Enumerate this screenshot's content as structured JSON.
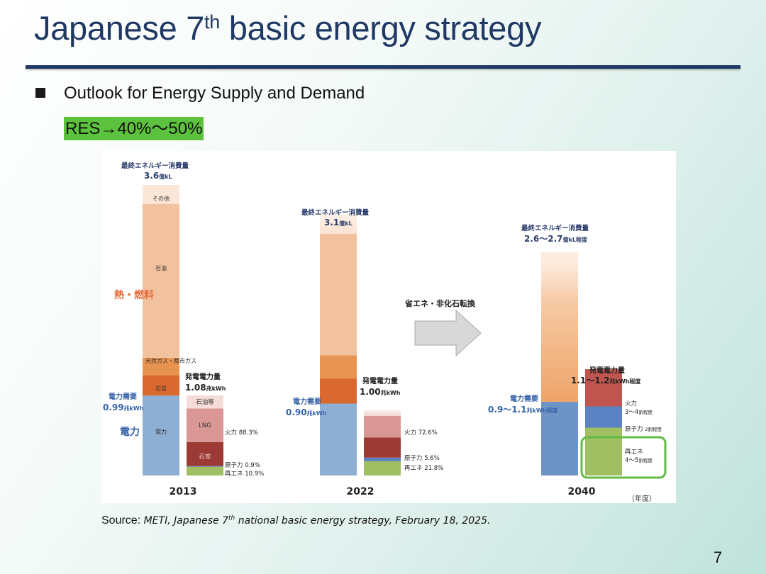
{
  "slide": {
    "title_pre": "Japanese 7",
    "title_sup": "th",
    "title_post": " basic energy strategy",
    "bullet": "Outlook for Energy Supply and Demand",
    "highlight": "RES→40%～50%",
    "source_label": "Source:",
    "source_text_pre": "METI, Japanese 7",
    "source_sup": "th",
    "source_text_post": " national basic energy strategy, February 18, 2025.",
    "page_number": "7",
    "accent_color": "#1f3864",
    "highlight_color": "#5cc13c"
  },
  "chart_data": {
    "type": "stacked-bar",
    "unit_note": "（年度）",
    "section_labels": {
      "heat_fuel": "熱・燃料",
      "electricity": "電力"
    },
    "arrow_label": "省エネ・非化石転換",
    "years": [
      {
        "year": "2013",
        "final_label": "最終エネルギー消費量",
        "final_value": "3.6",
        "final_unit": "億kL",
        "demand_label": "電力需要",
        "demand_value": "0.99",
        "demand_unit": "兆kWh",
        "consumption_segments": [
          {
            "name": "電力",
            "share": 0.275
          },
          {
            "name": "石炭",
            "share": 0.07
          },
          {
            "name": "天然ガス・都市ガス",
            "share": 0.06
          },
          {
            "name": "石油",
            "share": 0.53
          },
          {
            "name": "その他",
            "share": 0.065
          }
        ],
        "gen_label": "発電電力量",
        "gen_value": "1.08",
        "gen_unit": "兆kWh",
        "generation_segments": [
          {
            "name": "再エネ",
            "percent": 10.9
          },
          {
            "name": "原子力",
            "percent": 0.9
          },
          {
            "name": "石炭",
            "percent": 30
          },
          {
            "name": "LNG",
            "percent": 42
          },
          {
            "name": "石油等",
            "percent": 16.2
          }
        ],
        "gen_annotations": [
          {
            "name": "火力",
            "value": "88.3",
            "unit": "%"
          },
          {
            "name": "原子力",
            "value": "0.9",
            "unit": "%"
          },
          {
            "name": "再エネ",
            "value": "10.9",
            "unit": "%"
          }
        ]
      },
      {
        "year": "2022",
        "final_label": "最終エネルギー消費量",
        "final_value": "3.1",
        "final_unit": "億kL",
        "demand_label": "電力需要",
        "demand_value": "0.90",
        "demand_unit": "兆kWh",
        "consumption_segments": [
          {
            "name": "電力",
            "share": 0.29
          },
          {
            "name": "石炭",
            "share": 0.1
          },
          {
            "name": "天然ガス・都市ガス",
            "share": 0.095
          },
          {
            "name": "石油",
            "share": 0.49
          },
          {
            "name": "その他",
            "share": 0.08
          }
        ],
        "gen_label": "発電電力量",
        "gen_value": "1.00",
        "gen_unit": "兆kWh",
        "generation_segments": [
          {
            "name": "再エネ",
            "percent": 21.8
          },
          {
            "name": "原子力",
            "percent": 5.6
          },
          {
            "name": "石炭",
            "percent": 31
          },
          {
            "name": "LNG",
            "percent": 33
          },
          {
            "name": "石油等",
            "percent": 8.6
          }
        ],
        "gen_annotations": [
          {
            "name": "火力",
            "value": "72.6",
            "unit": "%"
          },
          {
            "name": "原子力",
            "value": "5.6",
            "unit": "%"
          },
          {
            "name": "再エネ",
            "value": "21.8",
            "unit": "%"
          }
        ]
      },
      {
        "year": "2040",
        "final_label": "最終エネルギー消費量",
        "final_value": "2.6～2.7",
        "final_unit": "億kL程度",
        "demand_label": "電力需要",
        "demand_value": "0.9～1.1",
        "demand_unit": "兆kWh程度",
        "consumption_segments": [
          {
            "name": "電力",
            "share": 0.33
          },
          {
            "name": "熱・燃料",
            "share": 0.62
          },
          {
            "name": "その他",
            "share": 0.05
          }
        ],
        "gen_label": "発電電力量",
        "gen_value": "1.1～1.2",
        "gen_unit": "兆kWh程度",
        "generation_segments": [
          {
            "name": "再エネ",
            "percent": 45
          },
          {
            "name": "原子力",
            "percent": 20
          },
          {
            "name": "火力",
            "percent": 35
          }
        ],
        "gen_annotations": [
          {
            "name": "火力",
            "value": "3～4",
            "unit": "割程度"
          },
          {
            "name": "原子力",
            "value": "2",
            "unit": "割程度"
          },
          {
            "name": "再エネ",
            "value": "4～5",
            "unit": "割程度"
          }
        ]
      }
    ],
    "inner_labels": {
      "y2013_other": "その他",
      "y2013_oil": "石油",
      "y2013_gas": "天然ガス・都市ガス",
      "y2013_coal": "石炭",
      "y2013_elec": "電力",
      "y2013_gen_oil": "石油等",
      "y2013_gen_lng": "LNG",
      "y2013_gen_coal": "石炭"
    },
    "colors": {
      "oil": "#f2c29f",
      "gas": "#e8934f",
      "coal": "#d9692e",
      "elec": "#8faed4",
      "elec_2040": "#6e94c6",
      "other": "#fbe6d8",
      "gen_oil": "#f6dcd8",
      "gen_lng": "#d99795",
      "gen_coal": "#9c3b36",
      "gen_thermal_2040": "#c05550",
      "nuclear": "#5b82c2",
      "renew": "#9fbf62",
      "highlight_box": "#62bb46"
    }
  }
}
